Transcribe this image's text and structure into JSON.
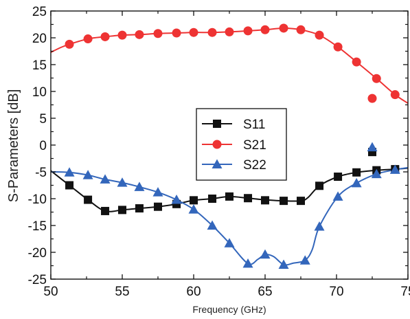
{
  "chart_data": {
    "type": "line",
    "xlabel": "Frequency (GHz)",
    "ylabel": "S-Parameters [dB]",
    "xlim": [
      50,
      75
    ],
    "ylim": [
      -25,
      25
    ],
    "xticks": [
      50,
      55,
      60,
      65,
      70,
      75
    ],
    "yticks": [
      -25,
      -20,
      -15,
      -10,
      -5,
      0,
      5,
      10,
      15,
      20,
      25
    ],
    "grid": false,
    "legend_position": "center",
    "series": [
      {
        "name": "S11",
        "color": "#111111",
        "marker": "square",
        "curve": [
          [
            50,
            -4.8
          ],
          [
            51.3,
            -7.5
          ],
          [
            52.6,
            -10.2
          ],
          [
            53.8,
            -12.3
          ],
          [
            55,
            -12.1
          ],
          [
            56.2,
            -11.8
          ],
          [
            57.5,
            -11.5
          ],
          [
            58.8,
            -11
          ],
          [
            60,
            -10.3
          ],
          [
            61.3,
            -10
          ],
          [
            62.5,
            -9.6
          ],
          [
            63.8,
            -9.9
          ],
          [
            65,
            -10.2
          ],
          [
            66.3,
            -10.4
          ],
          [
            67.5,
            -10.4
          ],
          [
            68,
            -9.8
          ],
          [
            68.8,
            -7.6
          ],
          [
            70.1,
            -5.9
          ],
          [
            71.4,
            -5.1
          ],
          [
            72.8,
            -4.7
          ],
          [
            74.1,
            -4.5
          ],
          [
            75,
            -4.3
          ]
        ],
        "markers": [
          [
            51.3,
            -7.5
          ],
          [
            52.6,
            -10.2
          ],
          [
            53.8,
            -12.3
          ],
          [
            55,
            -12.1
          ],
          [
            56.2,
            -11.8
          ],
          [
            57.5,
            -11.5
          ],
          [
            58.8,
            -11
          ],
          [
            60,
            -10.3
          ],
          [
            61.3,
            -10
          ],
          [
            62.5,
            -9.6
          ],
          [
            63.8,
            -9.9
          ],
          [
            65,
            -10.3
          ],
          [
            66.3,
            -10.4
          ],
          [
            67.5,
            -10.4
          ],
          [
            68.8,
            -7.6
          ],
          [
            70.1,
            -5.9
          ],
          [
            71.4,
            -5.1
          ],
          [
            72.8,
            -4.7
          ],
          [
            74.1,
            -4.5
          ],
          [
            72.5,
            -1.3
          ]
        ]
      },
      {
        "name": "S21",
        "color": "#ee3333",
        "marker": "circle",
        "curve": [
          [
            50,
            17.3
          ],
          [
            50.7,
            18.2
          ],
          [
            51.3,
            18.8
          ],
          [
            52.6,
            19.8
          ],
          [
            53.8,
            20.2
          ],
          [
            55,
            20.5
          ],
          [
            56.2,
            20.6
          ],
          [
            57.5,
            20.8
          ],
          [
            58.8,
            20.9
          ],
          [
            60,
            21.0
          ],
          [
            61.3,
            21.0
          ],
          [
            62.5,
            21.1
          ],
          [
            63.8,
            21.3
          ],
          [
            65,
            21.5
          ],
          [
            66.3,
            21.8
          ],
          [
            67.5,
            21.5
          ],
          [
            68.8,
            20.5
          ],
          [
            70.1,
            18.3
          ],
          [
            71.4,
            15.5
          ],
          [
            72.8,
            12.4
          ],
          [
            74.1,
            9.4
          ],
          [
            75,
            7.8
          ]
        ],
        "markers": [
          [
            51.3,
            18.8
          ],
          [
            52.6,
            19.8
          ],
          [
            53.8,
            20.2
          ],
          [
            55,
            20.5
          ],
          [
            56.2,
            20.6
          ],
          [
            57.5,
            20.8
          ],
          [
            58.8,
            20.9
          ],
          [
            60,
            21.0
          ],
          [
            61.3,
            21.0
          ],
          [
            62.5,
            21.1
          ],
          [
            63.8,
            21.3
          ],
          [
            65,
            21.5
          ],
          [
            66.3,
            21.8
          ],
          [
            67.5,
            21.5
          ],
          [
            68.8,
            20.5
          ],
          [
            70.1,
            18.3
          ],
          [
            71.4,
            15.5
          ],
          [
            72.8,
            12.4
          ],
          [
            74.1,
            9.4
          ],
          [
            72.5,
            8.7
          ]
        ]
      },
      {
        "name": "S22",
        "color": "#3366bb",
        "marker": "triangle",
        "curve": [
          [
            50,
            -5
          ],
          [
            51.3,
            -5.1
          ],
          [
            52.6,
            -5.6
          ],
          [
            53.8,
            -6.4
          ],
          [
            55,
            -7
          ],
          [
            56.2,
            -7.8
          ],
          [
            57.5,
            -8.8
          ],
          [
            58.8,
            -10.2
          ],
          [
            60,
            -12
          ],
          [
            61.3,
            -15
          ],
          [
            62.5,
            -18.3
          ],
          [
            63.8,
            -22.1
          ],
          [
            64.5,
            -21.3
          ],
          [
            65,
            -20.4
          ],
          [
            65.6,
            -20.8
          ],
          [
            66.3,
            -22.3
          ],
          [
            67,
            -22
          ],
          [
            67.8,
            -21.5
          ],
          [
            68.3,
            -19.5
          ],
          [
            68.8,
            -15.2
          ],
          [
            70.1,
            -9.6
          ],
          [
            71.4,
            -7.1
          ],
          [
            72.8,
            -5.4
          ],
          [
            74.1,
            -4.6
          ],
          [
            75,
            -4.2
          ]
        ],
        "markers": [
          [
            51.3,
            -5.1
          ],
          [
            52.6,
            -5.6
          ],
          [
            53.8,
            -6.4
          ],
          [
            55,
            -7
          ],
          [
            56.2,
            -7.8
          ],
          [
            57.5,
            -8.8
          ],
          [
            58.8,
            -10.2
          ],
          [
            60,
            -12
          ],
          [
            61.3,
            -15
          ],
          [
            62.5,
            -18.3
          ],
          [
            63.8,
            -22.1
          ],
          [
            65,
            -20.4
          ],
          [
            66.3,
            -22.3
          ],
          [
            67.8,
            -21.5
          ],
          [
            68.8,
            -15.2
          ],
          [
            70.1,
            -9.6
          ],
          [
            71.4,
            -7.1
          ],
          [
            72.8,
            -5.4
          ],
          [
            74.1,
            -4.6
          ],
          [
            72.5,
            -0.4
          ]
        ]
      }
    ]
  }
}
